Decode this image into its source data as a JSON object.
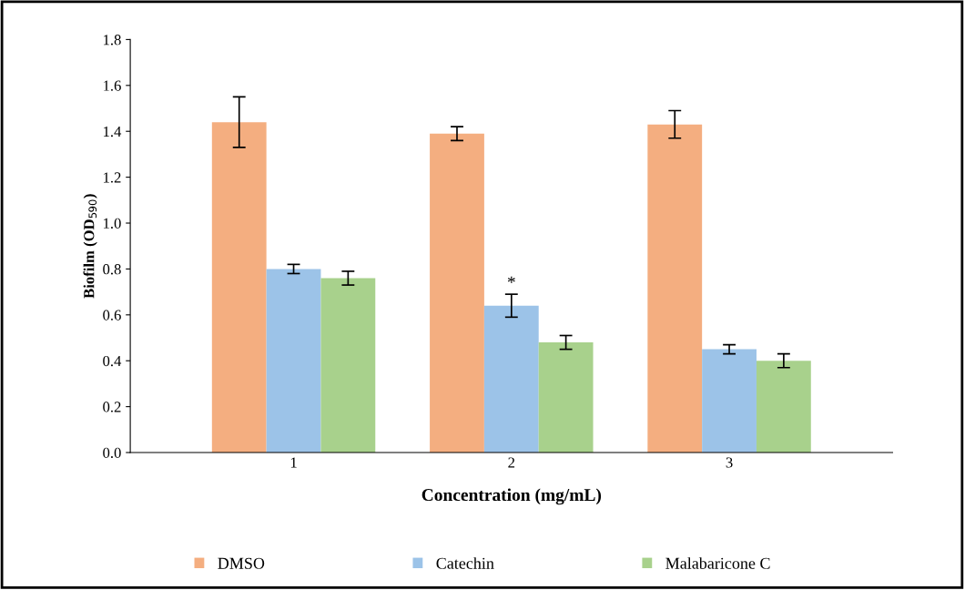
{
  "chart_data": {
    "type": "bar",
    "xlabel": "Concentration (mg/mL)",
    "ylabel": "Biofilm (OD$_{590}$)",
    "categories": [
      "1",
      "2",
      "3"
    ],
    "series": [
      {
        "name": "DMSO",
        "color": "#f4ae80",
        "values": [
          1.44,
          1.39,
          1.43
        ],
        "errors": [
          0.11,
          0.03,
          0.06
        ]
      },
      {
        "name": "Catechin",
        "color": "#9cc3e8",
        "values": [
          0.8,
          0.64,
          0.45
        ],
        "errors": [
          0.02,
          0.05,
          0.02
        ]
      },
      {
        "name": "Malabaricone C",
        "color": "#a8d18c",
        "values": [
          0.76,
          0.48,
          0.4
        ],
        "errors": [
          0.03,
          0.03,
          0.03
        ]
      }
    ],
    "ylim": [
      0,
      1.8
    ],
    "yticks": [
      {
        "value": 0,
        "label": "0.0"
      },
      {
        "value": 0.2,
        "label": "0.2"
      },
      {
        "value": 0.4,
        "label": "0.4"
      },
      {
        "value": 0.6,
        "label": "0.6"
      },
      {
        "value": 0.8,
        "label": "0.8"
      },
      {
        "value": 1.0,
        "label": "1.0"
      },
      {
        "value": 1.2,
        "label": "1.2"
      },
      {
        "value": 1.4,
        "label": "1.4"
      },
      {
        "value": 1.6,
        "label": "1.6"
      },
      {
        "value": 1.8,
        "label": "1.8"
      }
    ],
    "annotations": [
      {
        "text": "*",
        "x": "2",
        "y": 0.7
      }
    ],
    "legend": "bottom",
    "grid": false
  }
}
